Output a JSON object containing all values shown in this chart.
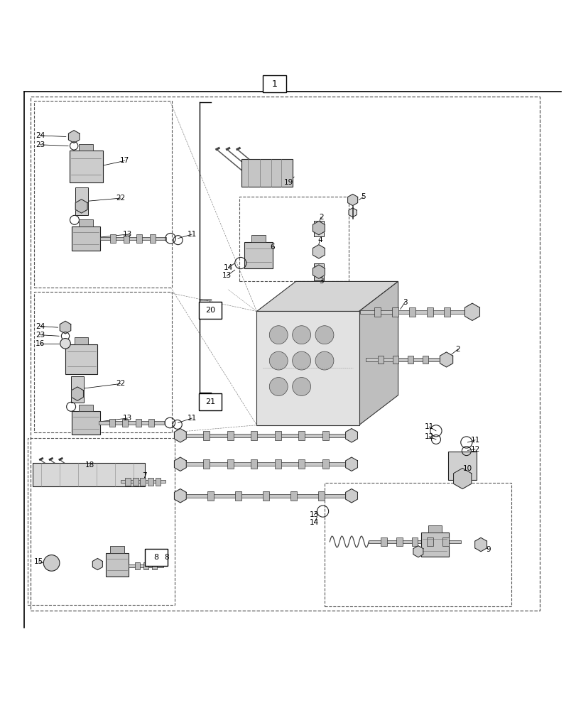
{
  "bg_color": "#ffffff",
  "fig_width": 8.12,
  "fig_height": 10.0,
  "dpi": 100
}
